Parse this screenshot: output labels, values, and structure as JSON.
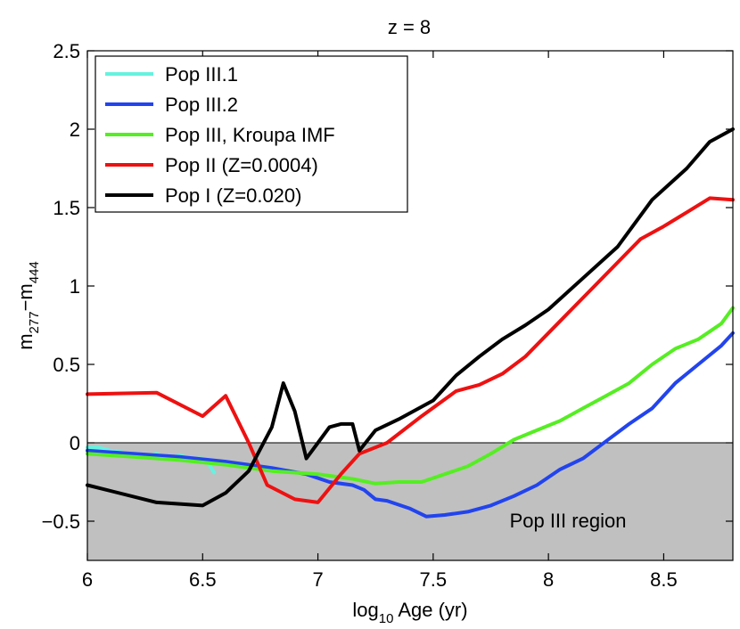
{
  "chart_data": {
    "type": "line",
    "title": "z = 8",
    "xlabel": {
      "base": "log",
      "sub": "10",
      "rest": " Age (yr)"
    },
    "ylabel": {
      "m1": "m",
      "sub1": "277",
      "dash": "−m",
      "sub2": "444"
    },
    "xlim": [
      6.0,
      8.8
    ],
    "ylim": [
      -0.75,
      2.5
    ],
    "xticks": [
      6,
      6.5,
      7,
      7.5,
      8,
      8.5
    ],
    "xtick_labels": [
      "6",
      "6.5",
      "7",
      "7.5",
      "8",
      "8.5"
    ],
    "yticks": [
      -0.5,
      0,
      0.5,
      1,
      1.5,
      2,
      2.5
    ],
    "ytick_labels": [
      "−0.5",
      "0",
      "0.5",
      "1",
      "1.5",
      "2",
      "2.5"
    ],
    "region": {
      "label": "Pop III region",
      "y_from": -0.75,
      "y_to": 0.0,
      "color": "#c0c0c0"
    },
    "legend_position": "upper-left",
    "series": [
      {
        "name": "Pop III.1",
        "color": "#66f2e0",
        "x": [
          6.0,
          6.05,
          6.1,
          6.15,
          6.2,
          6.25,
          6.3,
          6.35,
          6.4,
          6.45,
          6.5,
          6.52,
          6.55
        ],
        "y": [
          -0.03,
          -0.03,
          -0.05,
          -0.06,
          -0.08,
          -0.09,
          -0.07,
          -0.1,
          -0.08,
          -0.1,
          -0.1,
          -0.12,
          -0.19
        ]
      },
      {
        "name": "Pop III.2",
        "color": "#2244ee",
        "x": [
          6.0,
          6.2,
          6.4,
          6.6,
          6.8,
          6.95,
          7.05,
          7.15,
          7.2,
          7.25,
          7.3,
          7.4,
          7.47,
          7.55,
          7.65,
          7.75,
          7.85,
          7.95,
          8.05,
          8.15,
          8.25,
          8.35,
          8.45,
          8.55,
          8.65,
          8.75,
          8.8
        ],
        "y": [
          -0.05,
          -0.07,
          -0.09,
          -0.12,
          -0.16,
          -0.2,
          -0.25,
          -0.27,
          -0.3,
          -0.36,
          -0.37,
          -0.42,
          -0.47,
          -0.46,
          -0.44,
          -0.4,
          -0.34,
          -0.27,
          -0.17,
          -0.1,
          0.01,
          0.12,
          0.22,
          0.38,
          0.5,
          0.62,
          0.7
        ]
      },
      {
        "name": "Pop III, Kroupa IMF",
        "color": "#55ee22",
        "x": [
          6.0,
          6.2,
          6.4,
          6.6,
          6.8,
          7.0,
          7.15,
          7.25,
          7.35,
          7.45,
          7.55,
          7.65,
          7.75,
          7.85,
          7.95,
          8.05,
          8.15,
          8.25,
          8.35,
          8.45,
          8.55,
          8.65,
          8.75,
          8.8
        ],
        "y": [
          -0.07,
          -0.09,
          -0.11,
          -0.14,
          -0.18,
          -0.2,
          -0.23,
          -0.26,
          -0.25,
          -0.25,
          -0.2,
          -0.15,
          -0.07,
          0.02,
          0.08,
          0.14,
          0.22,
          0.3,
          0.38,
          0.5,
          0.6,
          0.66,
          0.76,
          0.86
        ]
      },
      {
        "name": "Pop II (Z=0.0004)",
        "color": "#ee1111",
        "x": [
          6.0,
          6.3,
          6.5,
          6.6,
          6.7,
          6.78,
          6.9,
          7.0,
          7.1,
          7.18,
          7.3,
          7.45,
          7.6,
          7.7,
          7.8,
          7.9,
          8.0,
          8.1,
          8.2,
          8.3,
          8.4,
          8.5,
          8.6,
          8.7,
          8.8
        ],
        "y": [
          0.31,
          0.32,
          0.17,
          0.3,
          0.0,
          -0.27,
          -0.36,
          -0.38,
          -0.2,
          -0.07,
          0.0,
          0.17,
          0.33,
          0.37,
          0.44,
          0.55,
          0.7,
          0.85,
          1.0,
          1.15,
          1.3,
          1.38,
          1.47,
          1.56,
          1.55
        ]
      },
      {
        "name": "Pop I (Z=0.020)",
        "color": "#000000",
        "x": [
          6.0,
          6.3,
          6.5,
          6.6,
          6.7,
          6.8,
          6.85,
          6.9,
          6.95,
          7.0,
          7.05,
          7.1,
          7.15,
          7.18,
          7.25,
          7.35,
          7.5,
          7.6,
          7.7,
          7.8,
          7.9,
          8.0,
          8.15,
          8.3,
          8.45,
          8.6,
          8.7,
          8.8
        ],
        "y": [
          -0.27,
          -0.38,
          -0.4,
          -0.32,
          -0.18,
          0.1,
          0.38,
          0.2,
          -0.1,
          0.0,
          0.1,
          0.12,
          0.12,
          -0.05,
          0.08,
          0.15,
          0.27,
          0.43,
          0.55,
          0.66,
          0.75,
          0.85,
          1.05,
          1.25,
          1.55,
          1.75,
          1.92,
          2.0
        ]
      }
    ]
  }
}
